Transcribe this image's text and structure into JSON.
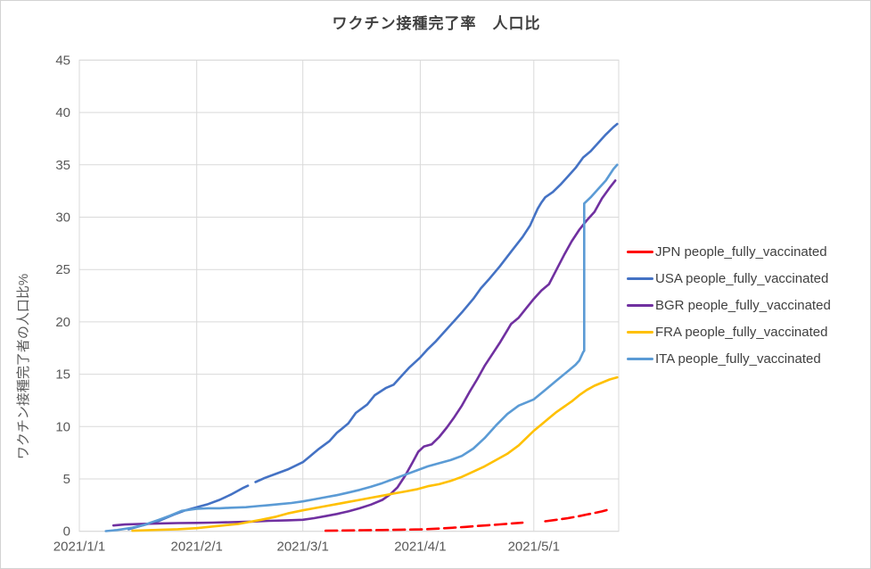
{
  "title": "ワクチン接種完了率　人口比",
  "y_axis_label": "ワクチン接種完了者の人口比%",
  "colors": {
    "grid": "#d9d9d9",
    "tick_text": "#595959",
    "title_text": "#404040",
    "legend_text": "#404040",
    "outer_border": "#d3d3d3",
    "background": "#ffffff"
  },
  "chart_data": {
    "type": "line",
    "title": "ワクチン接種完了率　人口比",
    "xlabel": "",
    "ylabel": "ワクチン接種完了者の人口比%",
    "grid": true,
    "legend_position": "right",
    "y_axis": {
      "min": 0,
      "max": 45,
      "step": 5,
      "tick_labels": [
        "0",
        "5",
        "10",
        "15",
        "20",
        "25",
        "30",
        "35",
        "40",
        "45"
      ]
    },
    "x_axis": {
      "unit": "date (days since 2021/1/1)",
      "domain_days": [
        0,
        142.4
      ],
      "ticks": [
        {
          "label": "2021/1/1",
          "day": 0
        },
        {
          "label": "2021/2/1",
          "day": 31
        },
        {
          "label": "2021/3/1",
          "day": 59
        },
        {
          "label": "2021/4/1",
          "day": 90
        },
        {
          "label": "2021/5/1",
          "day": 120
        }
      ]
    },
    "series": [
      {
        "id": "JPN",
        "legend_label": "JPN people_fully_vaccinated",
        "color": "#ff0000",
        "style": "dashed",
        "dash": [
          13,
          6
        ],
        "points": [
          [
            65,
            0.05
          ],
          [
            70,
            0.08
          ],
          [
            75,
            0.1
          ],
          [
            80,
            0.12
          ],
          [
            85,
            0.15
          ],
          [
            90,
            0.18
          ],
          [
            93,
            0.22
          ],
          [
            96,
            0.28
          ],
          [
            99,
            0.35
          ],
          [
            102,
            0.42
          ],
          [
            105,
            0.5
          ],
          [
            108,
            0.58
          ],
          [
            111,
            0.66
          ],
          [
            114,
            0.74
          ],
          [
            117,
            0.82
          ],
          null,
          [
            123,
            0.95
          ],
          [
            126,
            1.1
          ],
          [
            129,
            1.25
          ],
          [
            132,
            1.45
          ],
          [
            134,
            1.6
          ],
          [
            136,
            1.75
          ],
          [
            138,
            1.9
          ],
          [
            139.5,
            2.05
          ]
        ]
      },
      {
        "id": "USA",
        "legend_label": "USA people_fully_vaccinated",
        "color": "#4472c4",
        "style": "solid",
        "dash": null,
        "points": [
          [
            13,
            0.2
          ],
          [
            17,
            0.6
          ],
          [
            21,
            1.0
          ],
          [
            25,
            1.6
          ],
          [
            28,
            2.0
          ],
          [
            31,
            2.3
          ],
          [
            34,
            2.6
          ],
          [
            37,
            3.0
          ],
          [
            40,
            3.5
          ],
          [
            43,
            4.1
          ],
          [
            44.5,
            4.35
          ],
          null,
          [
            46.5,
            4.7
          ],
          [
            49,
            5.1
          ],
          [
            52,
            5.5
          ],
          [
            55,
            5.9
          ],
          [
            59,
            6.6
          ],
          [
            61,
            7.2
          ],
          [
            63,
            7.8
          ],
          [
            66,
            8.6
          ],
          [
            68,
            9.4
          ],
          [
            71,
            10.3
          ],
          [
            73,
            11.3
          ],
          [
            76,
            12.1
          ],
          [
            78,
            13.0
          ],
          [
            81,
            13.7
          ],
          [
            83,
            14.0
          ],
          [
            85,
            14.8
          ],
          [
            87,
            15.6
          ],
          [
            90,
            16.6
          ],
          [
            92,
            17.4
          ],
          [
            94,
            18.1
          ],
          [
            97,
            19.3
          ],
          [
            99,
            20.1
          ],
          [
            101,
            20.9
          ],
          [
            104,
            22.2
          ],
          [
            106,
            23.2
          ],
          [
            108,
            24.0
          ],
          [
            111,
            25.3
          ],
          [
            114,
            26.7
          ],
          [
            117,
            28.1
          ],
          [
            119,
            29.2
          ],
          [
            120,
            30.0
          ],
          [
            121,
            30.8
          ],
          [
            122,
            31.4
          ],
          [
            123,
            31.9
          ],
          [
            125,
            32.4
          ],
          [
            127,
            33.1
          ],
          [
            129,
            33.9
          ],
          [
            131,
            34.7
          ],
          [
            133,
            35.7
          ],
          [
            135,
            36.3
          ],
          [
            137,
            37.1
          ],
          [
            139,
            37.9
          ],
          [
            141,
            38.6
          ],
          [
            142,
            38.9
          ]
        ]
      },
      {
        "id": "BGR",
        "legend_label": "BGR people_fully_vaccinated",
        "color": "#7030a0",
        "style": "solid",
        "dash": null,
        "points": [
          [
            9,
            0.55
          ],
          [
            12,
            0.65
          ],
          [
            16,
            0.7
          ],
          [
            21,
            0.75
          ],
          [
            26,
            0.78
          ],
          [
            31,
            0.8
          ],
          [
            35,
            0.83
          ],
          [
            40,
            0.87
          ],
          [
            45,
            0.92
          ],
          [
            50,
            1.0
          ],
          [
            55,
            1.05
          ],
          [
            59,
            1.1
          ],
          [
            62,
            1.25
          ],
          [
            65,
            1.45
          ],
          [
            68,
            1.65
          ],
          [
            71,
            1.9
          ],
          [
            74,
            2.2
          ],
          [
            77,
            2.55
          ],
          [
            80,
            3.0
          ],
          [
            82,
            3.5
          ],
          [
            84,
            4.2
          ],
          [
            86,
            5.3
          ],
          [
            88,
            6.6
          ],
          [
            89.5,
            7.6
          ],
          [
            91,
            8.1
          ],
          [
            93,
            8.3
          ],
          [
            95,
            9.0
          ],
          [
            97,
            9.9
          ],
          [
            99,
            10.9
          ],
          [
            101,
            12.0
          ],
          [
            103,
            13.3
          ],
          [
            105,
            14.5
          ],
          [
            107,
            15.8
          ],
          [
            109,
            16.9
          ],
          [
            111,
            18.0
          ],
          [
            113,
            19.2
          ],
          [
            114,
            19.8
          ],
          [
            116,
            20.4
          ],
          [
            118,
            21.3
          ],
          [
            120,
            22.2
          ],
          [
            122,
            23.0
          ],
          [
            124,
            23.6
          ],
          [
            126,
            25.0
          ],
          [
            128,
            26.4
          ],
          [
            130,
            27.7
          ],
          [
            132,
            28.8
          ],
          [
            134,
            29.7
          ],
          [
            136,
            30.5
          ],
          [
            138,
            31.8
          ],
          [
            140,
            32.8
          ],
          [
            141.5,
            33.5
          ]
        ]
      },
      {
        "id": "FRA",
        "legend_label": "FRA people_fully_vaccinated",
        "color": "#ffc000",
        "style": "solid",
        "dash": null,
        "points": [
          [
            14,
            0.05
          ],
          [
            18,
            0.1
          ],
          [
            22,
            0.15
          ],
          [
            26,
            0.2
          ],
          [
            31,
            0.3
          ],
          [
            35,
            0.45
          ],
          [
            38,
            0.55
          ],
          [
            42,
            0.7
          ],
          [
            45,
            0.9
          ],
          [
            48,
            1.1
          ],
          [
            52,
            1.4
          ],
          [
            55,
            1.7
          ],
          [
            59,
            2.0
          ],
          [
            62,
            2.2
          ],
          [
            65,
            2.4
          ],
          [
            68,
            2.6
          ],
          [
            71,
            2.8
          ],
          [
            74,
            3.0
          ],
          [
            77,
            3.2
          ],
          [
            80,
            3.4
          ],
          [
            83,
            3.6
          ],
          [
            86,
            3.8
          ],
          [
            89,
            4.0
          ],
          [
            92,
            4.3
          ],
          [
            95,
            4.5
          ],
          [
            98,
            4.8
          ],
          [
            101,
            5.2
          ],
          [
            104,
            5.7
          ],
          [
            107,
            6.2
          ],
          [
            110,
            6.8
          ],
          [
            113,
            7.4
          ],
          [
            116,
            8.2
          ],
          [
            118,
            8.9
          ],
          [
            120,
            9.6
          ],
          [
            122,
            10.2
          ],
          [
            124,
            10.8
          ],
          [
            126,
            11.4
          ],
          [
            128,
            11.9
          ],
          [
            130,
            12.4
          ],
          [
            132,
            13.0
          ],
          [
            134,
            13.5
          ],
          [
            136,
            13.9
          ],
          [
            138,
            14.2
          ],
          [
            140,
            14.5
          ],
          [
            142,
            14.7
          ]
        ]
      },
      {
        "id": "ITA",
        "legend_label": "ITA people_fully_vaccinated",
        "color": "#5b9bd5",
        "style": "solid",
        "dash": null,
        "points": [
          [
            7,
            0.02
          ],
          [
            10,
            0.12
          ],
          [
            14,
            0.35
          ],
          [
            17,
            0.6
          ],
          [
            21,
            1.1
          ],
          [
            24,
            1.5
          ],
          [
            27,
            1.95
          ],
          [
            31,
            2.15
          ],
          [
            34,
            2.2
          ],
          [
            37,
            2.2
          ],
          [
            40,
            2.25
          ],
          [
            44,
            2.3
          ],
          [
            47,
            2.4
          ],
          [
            50,
            2.5
          ],
          [
            53,
            2.6
          ],
          [
            56,
            2.7
          ],
          [
            59,
            2.85
          ],
          [
            62,
            3.05
          ],
          [
            65,
            3.25
          ],
          [
            68,
            3.45
          ],
          [
            71,
            3.7
          ],
          [
            74,
            3.95
          ],
          [
            77,
            4.25
          ],
          [
            80,
            4.6
          ],
          [
            83,
            5.0
          ],
          [
            86,
            5.4
          ],
          [
            89,
            5.8
          ],
          [
            92,
            6.2
          ],
          [
            95,
            6.5
          ],
          [
            98,
            6.8
          ],
          [
            101,
            7.2
          ],
          [
            104,
            7.9
          ],
          [
            107,
            8.9
          ],
          [
            110,
            10.1
          ],
          [
            113,
            11.2
          ],
          [
            116,
            12.0
          ],
          [
            120,
            12.6
          ],
          [
            123,
            13.5
          ],
          [
            126,
            14.4
          ],
          [
            129,
            15.3
          ],
          [
            131,
            15.9
          ],
          [
            132,
            16.3
          ],
          [
            133,
            17.1
          ],
          [
            133.3,
            17.25
          ],
          [
            133.3,
            31.3
          ],
          [
            135,
            31.9
          ],
          [
            137,
            32.7
          ],
          [
            139,
            33.5
          ],
          [
            141,
            34.6
          ],
          [
            142,
            35.0
          ]
        ]
      }
    ]
  }
}
